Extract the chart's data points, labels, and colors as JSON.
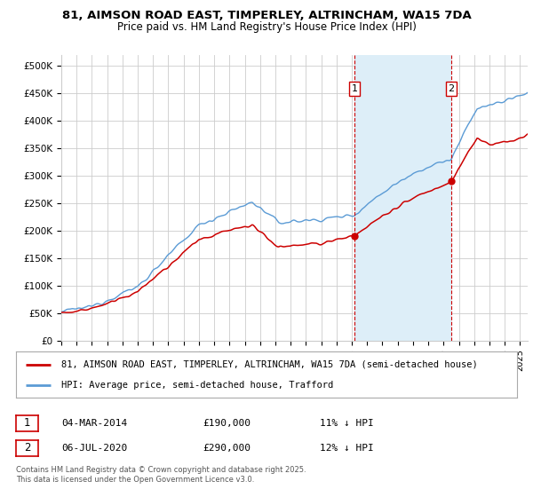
{
  "title_line1": "81, AIMSON ROAD EAST, TIMPERLEY, ALTRINCHAM, WA15 7DA",
  "title_line2": "Price paid vs. HM Land Registry's House Price Index (HPI)",
  "ylim": [
    0,
    520000
  ],
  "xlim_start": 1995.0,
  "xlim_end": 2025.5,
  "yticks": [
    0,
    50000,
    100000,
    150000,
    200000,
    250000,
    300000,
    350000,
    400000,
    450000,
    500000
  ],
  "ytick_labels": [
    "£0",
    "£50K",
    "£100K",
    "£150K",
    "£200K",
    "£250K",
    "£300K",
    "£350K",
    "£400K",
    "£450K",
    "£500K"
  ],
  "xticks": [
    1995,
    1996,
    1997,
    1998,
    1999,
    2000,
    2001,
    2002,
    2003,
    2004,
    2005,
    2006,
    2007,
    2008,
    2009,
    2010,
    2011,
    2012,
    2013,
    2014,
    2015,
    2016,
    2017,
    2018,
    2019,
    2020,
    2021,
    2022,
    2023,
    2024,
    2025
  ],
  "hpi_color": "#5b9bd5",
  "hpi_fill_color": "#ddeef8",
  "price_color": "#cc0000",
  "marker_color": "#cc0000",
  "vline_color": "#cc0000",
  "purchase1_x": 2014.17,
  "purchase1_y": 190000,
  "purchase1_label": "1",
  "purchase2_x": 2020.51,
  "purchase2_y": 290000,
  "purchase2_label": "2",
  "legend_line1": "81, AIMSON ROAD EAST, TIMPERLEY, ALTRINCHAM, WA15 7DA (semi-detached house)",
  "legend_line2": "HPI: Average price, semi-detached house, Trafford",
  "bg_color": "#ffffff",
  "grid_color": "#cccccc",
  "footnote": "Contains HM Land Registry data © Crown copyright and database right 2025.\nThis data is licensed under the Open Government Licence v3.0."
}
